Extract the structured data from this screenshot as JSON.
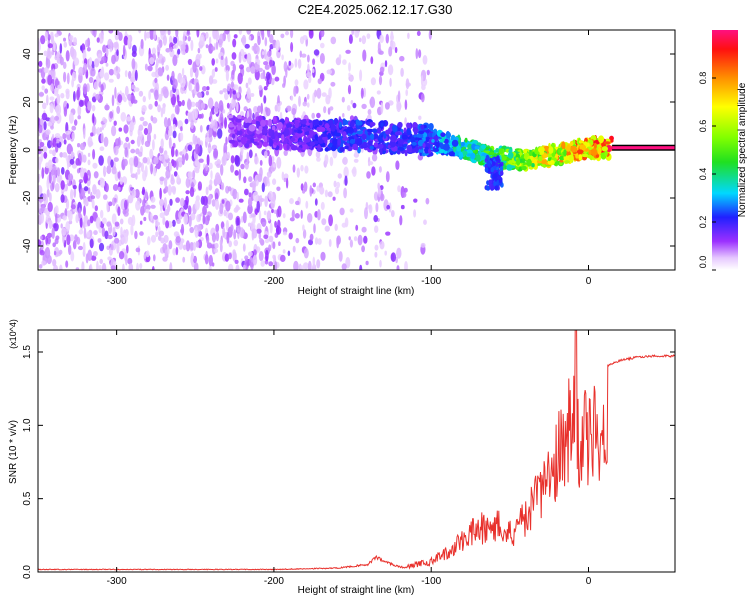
{
  "title": "C2E4.2025.062.12.17.G30",
  "chart_data": [
    {
      "type": "heatmap",
      "xlabel": "Height of straight line (km)",
      "ylabel": "Frequency (Hz)",
      "xlim": [
        -350,
        55
      ],
      "ylim": [
        -50,
        50
      ],
      "xticks": [
        -300,
        -200,
        -100,
        0
      ],
      "xtick_labels": [
        "-300",
        "-200",
        "-100",
        "0"
      ],
      "yticks": [
        -40,
        -20,
        0,
        20,
        40
      ],
      "ytick_labels": [
        "-40",
        "-20",
        "0",
        "20",
        "40"
      ],
      "colorbar": {
        "label": "Normalized spectral amplitude",
        "range": [
          0,
          1
        ],
        "ticks": [
          0.0,
          0.2,
          0.4,
          0.6,
          0.8
        ],
        "tick_labels": [
          "0.0",
          "0.2",
          "0.4",
          "0.6",
          "0.8"
        ],
        "colormap": "rainbow"
      },
      "ridge": {
        "x": [
          -225,
          -200,
          -175,
          -150,
          -125,
          -100,
          -80,
          -60,
          -40,
          -20,
          0,
          15,
          55
        ],
        "y": [
          8,
          7,
          6,
          6,
          5,
          4,
          1,
          -3,
          -4,
          -2,
          1,
          1,
          1
        ],
        "amplitude": [
          0.15,
          0.18,
          0.22,
          0.28,
          0.25,
          0.3,
          0.45,
          0.55,
          0.7,
          0.85,
          0.95,
          1.0,
          1.0
        ]
      },
      "grid": false
    },
    {
      "type": "line",
      "xlabel": "Height of straight line (km)",
      "ylabel": "SNR (10 * v/v)",
      "y_multiplier": "(x10^4)",
      "xlim": [
        -350,
        55
      ],
      "ylim": [
        0,
        1.65
      ],
      "xticks": [
        -300,
        -200,
        -100,
        0
      ],
      "xtick_labels": [
        "-300",
        "-200",
        "-100",
        "0"
      ],
      "yticks": [
        0.0,
        0.5,
        1.0,
        1.5
      ],
      "ytick_labels": [
        "0.0",
        "0.5",
        "1.0",
        "1.5"
      ],
      "series": [
        {
          "color": "#e8312c",
          "x": [
            -350,
            -300,
            -250,
            -200,
            -160,
            -140,
            -135,
            -130,
            -120,
            -100,
            -90,
            -80,
            -70,
            -60,
            -50,
            -40,
            -30,
            -25,
            -20,
            -15,
            -10,
            -5,
            0,
            10,
            20,
            30,
            40,
            55
          ],
          "y": [
            0.02,
            0.02,
            0.02,
            0.02,
            0.03,
            0.06,
            0.12,
            0.08,
            0.04,
            0.1,
            0.18,
            0.3,
            0.4,
            0.45,
            0.35,
            0.5,
            0.75,
            0.9,
            1.05,
            1.3,
            1.4,
            1.2,
            1.3,
            1.4,
            1.45,
            1.47,
            1.48,
            1.48
          ],
          "peak": {
            "x": -8,
            "y": 1.65
          }
        }
      ],
      "grid": false
    }
  ]
}
